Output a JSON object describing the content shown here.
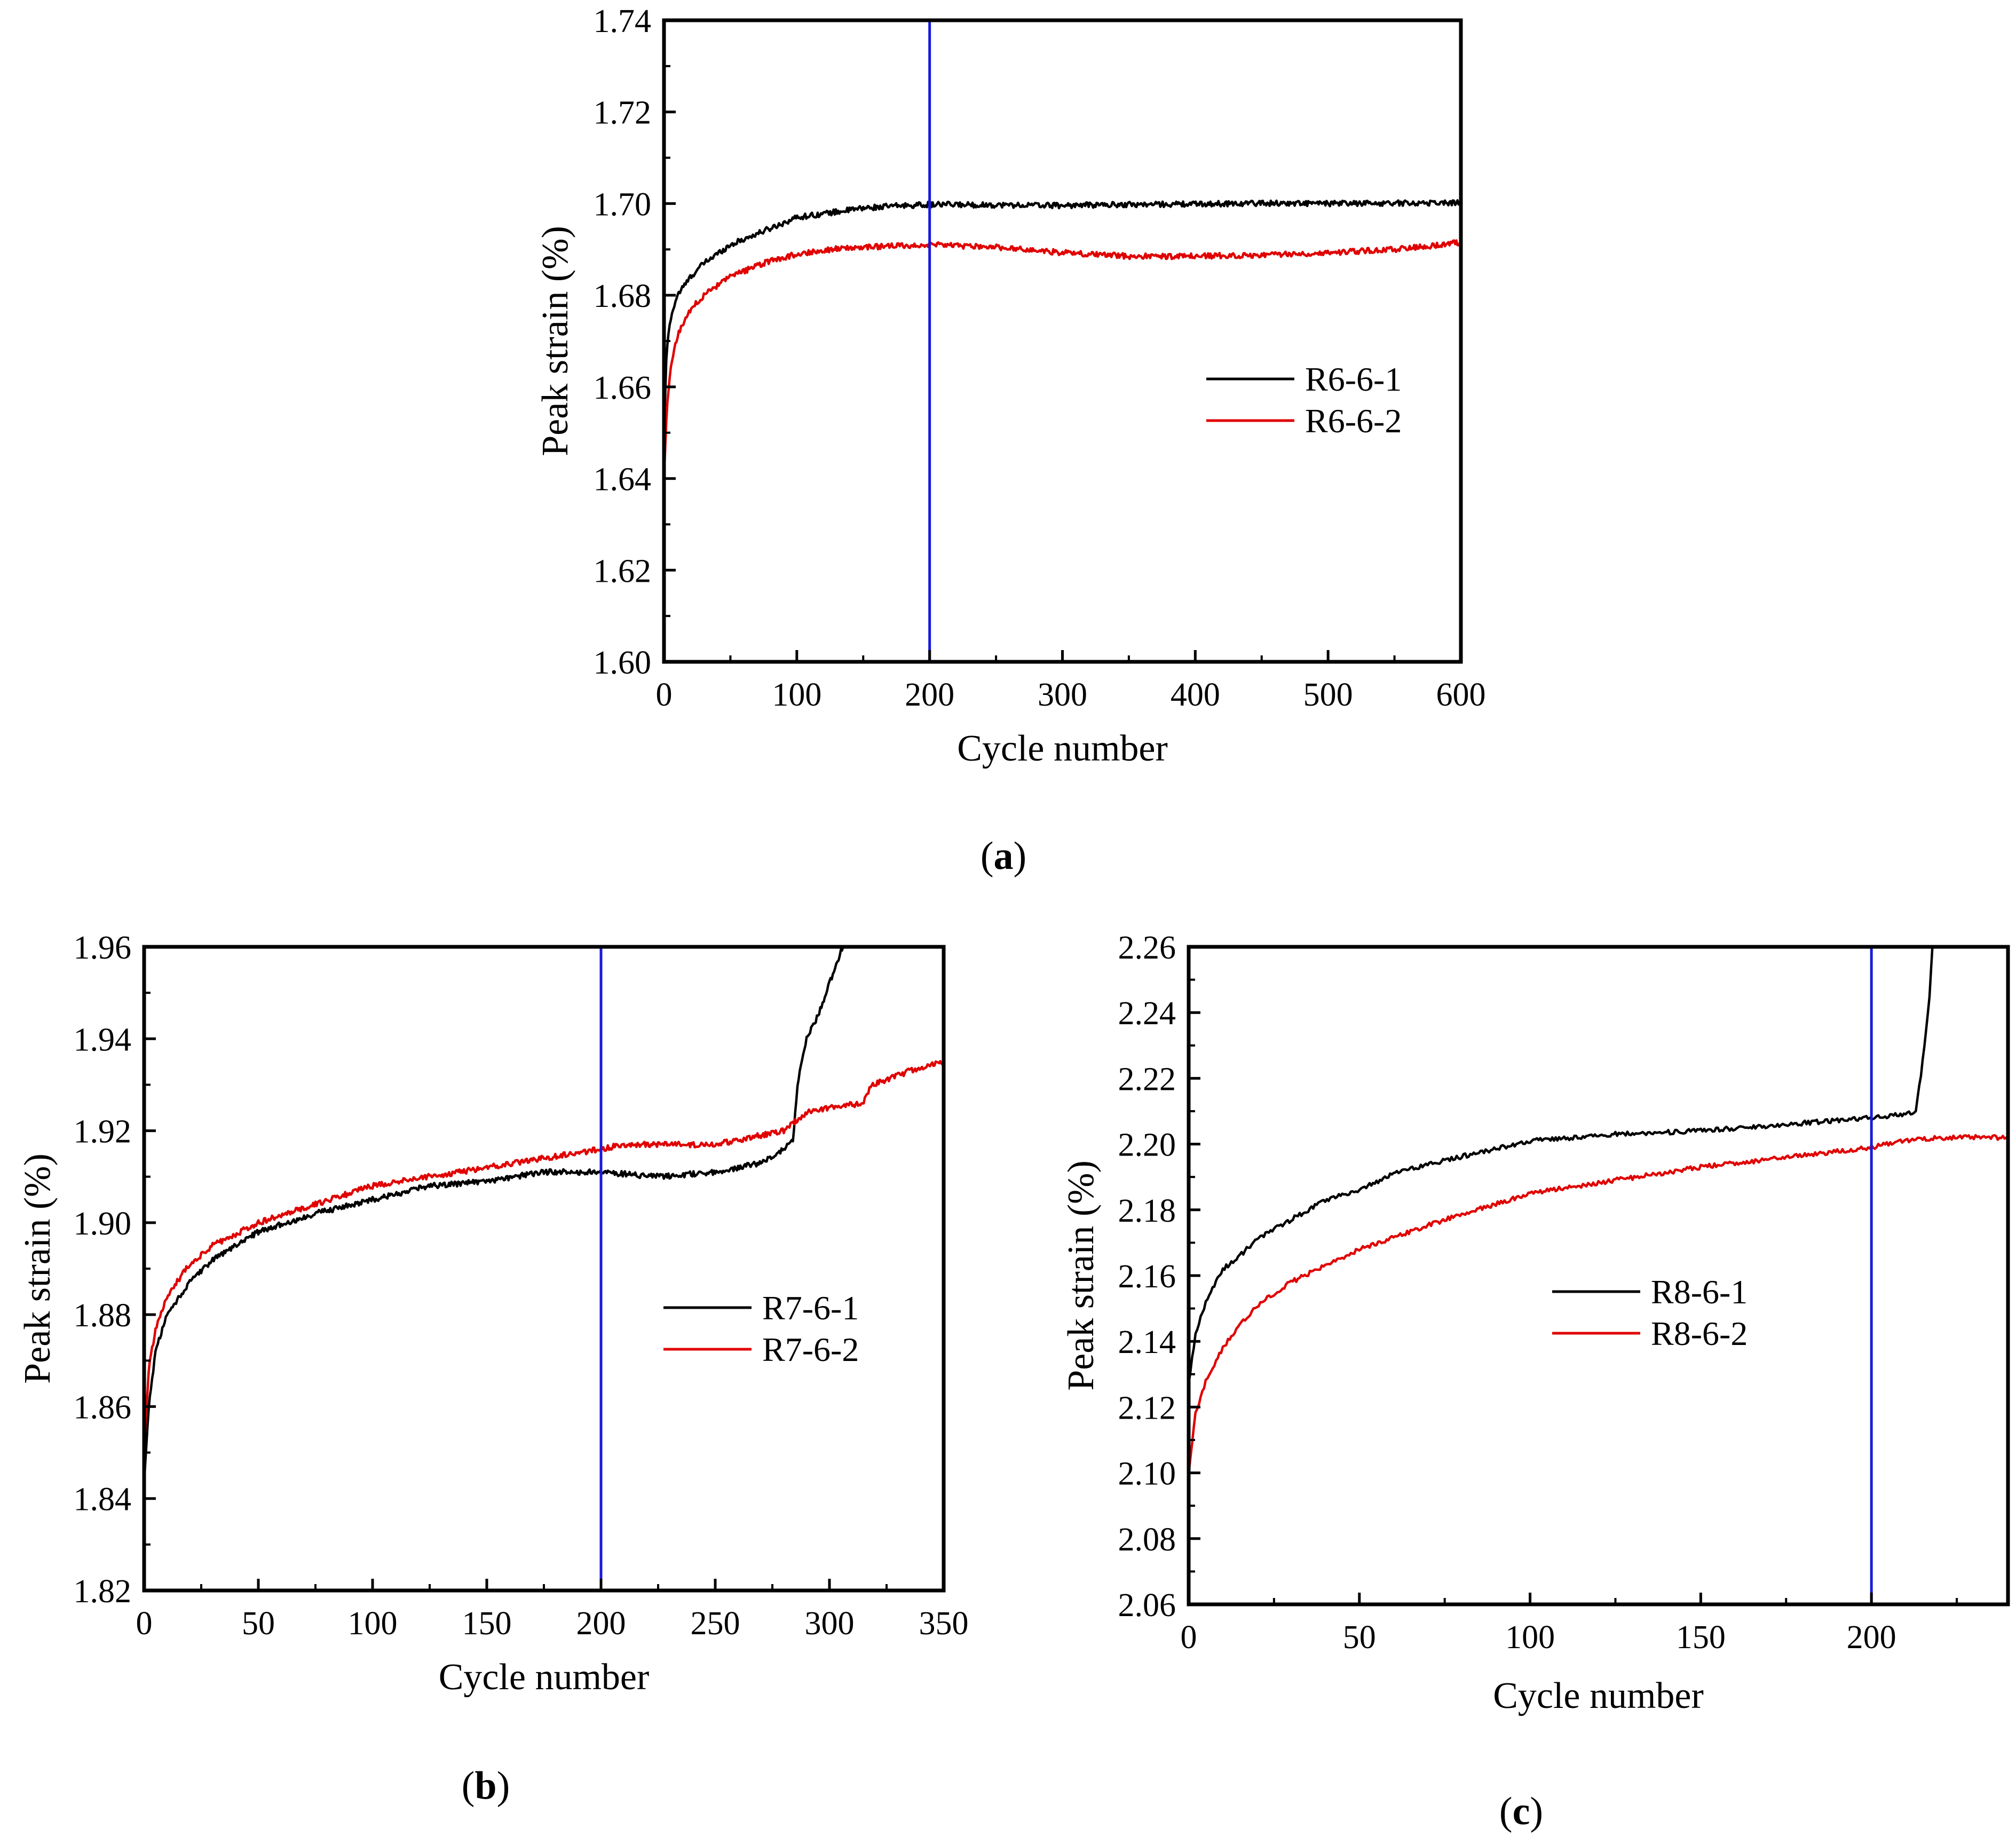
{
  "figure": {
    "captions": [
      "(a)",
      "(b)",
      "(c)"
    ],
    "ref_line_color": "#1a1adc"
  },
  "chart_data": [
    {
      "id": "a",
      "type": "line",
      "caption": "(a)",
      "xlabel": "Cycle number",
      "ylabel": "Peak strain (%)",
      "xlim": [
        0,
        600
      ],
      "ylim": [
        1.6,
        1.74
      ],
      "xticks": [
        "0",
        "100",
        "200",
        "300",
        "400",
        "500",
        "600"
      ],
      "yticks": [
        "1.60",
        "1.62",
        "1.64",
        "1.66",
        "1.68",
        "1.70",
        "1.72",
        "1.74"
      ],
      "grid": false,
      "legend_position": "right",
      "reference_line_x": 200,
      "series": [
        {
          "name": "R6-6-1",
          "color": "#000000",
          "points": [
            [
              0,
              1.65
            ],
            [
              2,
              1.668
            ],
            [
              5,
              1.675
            ],
            [
              10,
              1.68
            ],
            [
              20,
              1.684
            ],
            [
              30,
              1.687
            ],
            [
              50,
              1.691
            ],
            [
              75,
              1.694
            ],
            [
              100,
              1.697
            ],
            [
              125,
              1.698
            ],
            [
              150,
              1.699
            ],
            [
              175,
              1.6995
            ],
            [
              200,
              1.6998
            ],
            [
              250,
              1.6997
            ],
            [
              300,
              1.6996
            ],
            [
              350,
              1.6998
            ],
            [
              400,
              1.6999
            ],
            [
              450,
              1.7001
            ],
            [
              500,
              1.7
            ],
            [
              550,
              1.7001
            ],
            [
              600,
              1.7002
            ]
          ],
          "noise": 0.0006
        },
        {
          "name": "R6-6-2",
          "color": "#e00000",
          "points": [
            [
              0,
              1.64
            ],
            [
              2,
              1.655
            ],
            [
              5,
              1.664
            ],
            [
              10,
              1.671
            ],
            [
              20,
              1.677
            ],
            [
              30,
              1.68
            ],
            [
              50,
              1.684
            ],
            [
              75,
              1.687
            ],
            [
              100,
              1.689
            ],
            [
              125,
              1.69
            ],
            [
              150,
              1.6905
            ],
            [
              200,
              1.691
            ],
            [
              250,
              1.6905
            ],
            [
              300,
              1.6893
            ],
            [
              350,
              1.6885
            ],
            [
              400,
              1.6885
            ],
            [
              450,
              1.6888
            ],
            [
              500,
              1.6893
            ],
            [
              550,
              1.69
            ],
            [
              600,
              1.6915
            ]
          ],
          "noise": 0.0006
        }
      ]
    },
    {
      "id": "b",
      "type": "line",
      "caption": "(b)",
      "xlabel": "Cycle number",
      "ylabel": "Peak strain (%)",
      "xlim": [
        0,
        350
      ],
      "ylim": [
        1.82,
        1.96
      ],
      "xticks": [
        "0",
        "50",
        "100",
        "150",
        "200",
        "250",
        "300",
        "350"
      ],
      "yticks": [
        "1.82",
        "1.84",
        "1.86",
        "1.88",
        "1.90",
        "1.92",
        "1.94",
        "1.96"
      ],
      "grid": false,
      "legend_position": "right",
      "reference_line_x": 200,
      "series": [
        {
          "name": "R7-6-1",
          "color": "#000000",
          "points": [
            [
              0,
              1.843
            ],
            [
              2,
              1.86
            ],
            [
              5,
              1.872
            ],
            [
              10,
              1.88
            ],
            [
              20,
              1.887
            ],
            [
              30,
              1.892
            ],
            [
              50,
              1.898
            ],
            [
              75,
              1.902
            ],
            [
              100,
              1.905
            ],
            [
              125,
              1.908
            ],
            [
              150,
              1.909
            ],
            [
              175,
              1.911
            ],
            [
              200,
              1.911
            ],
            [
              225,
              1.91
            ],
            [
              250,
              1.911
            ],
            [
              270,
              1.913
            ],
            [
              280,
              1.916
            ],
            [
              284,
              1.918
            ],
            [
              286,
              1.93
            ],
            [
              290,
              1.94
            ],
            [
              295,
              1.945
            ],
            [
              300,
              1.952
            ],
            [
              305,
              1.959
            ],
            [
              307,
              1.962
            ]
          ],
          "noise": 0.0006
        },
        {
          "name": "R7-6-2",
          "color": "#e00000",
          "points": [
            [
              0,
              1.851
            ],
            [
              2,
              1.868
            ],
            [
              5,
              1.877
            ],
            [
              10,
              1.884
            ],
            [
              20,
              1.891
            ],
            [
              30,
              1.895
            ],
            [
              50,
              1.9
            ],
            [
              75,
              1.904
            ],
            [
              100,
              1.908
            ],
            [
              125,
              1.91
            ],
            [
              150,
              1.912
            ],
            [
              175,
              1.914
            ],
            [
              200,
              1.916
            ],
            [
              210,
              1.917
            ],
            [
              250,
              1.917
            ],
            [
              270,
              1.919
            ],
            [
              280,
              1.92
            ],
            [
              285,
              1.922
            ],
            [
              290,
              1.924
            ],
            [
              300,
              1.925
            ],
            [
              315,
              1.926
            ],
            [
              318,
              1.93
            ],
            [
              325,
              1.931
            ],
            [
              335,
              1.933
            ],
            [
              350,
              1.935
            ]
          ],
          "noise": 0.0006
        }
      ]
    },
    {
      "id": "c",
      "type": "line",
      "caption": "(c)",
      "xlabel": "Cycle number",
      "ylabel": "Peak strain (%)",
      "xlim": [
        0,
        240
      ],
      "ylim": [
        2.06,
        2.26
      ],
      "xticks": [
        "0",
        "50",
        "100",
        "150",
        "200"
      ],
      "yticks": [
        "2.06",
        "2.08",
        "2.10",
        "2.12",
        "2.14",
        "2.16",
        "2.18",
        "2.20",
        "2.22",
        "2.24",
        "2.26"
      ],
      "grid": false,
      "legend_position": "center-right",
      "reference_line_x": 200,
      "series": [
        {
          "name": "R8-6-1",
          "color": "#000000",
          "points": [
            [
              0,
              2.127
            ],
            [
              2,
              2.142
            ],
            [
              5,
              2.152
            ],
            [
              10,
              2.162
            ],
            [
              15,
              2.166
            ],
            [
              20,
              2.171
            ],
            [
              30,
              2.177
            ],
            [
              40,
              2.183
            ],
            [
              50,
              2.186
            ],
            [
              60,
              2.191
            ],
            [
              75,
              2.195
            ],
            [
              100,
              2.201
            ],
            [
              125,
              2.203
            ],
            [
              150,
              2.204
            ],
            [
              175,
              2.206
            ],
            [
              200,
              2.208
            ],
            [
              210,
              2.209
            ],
            [
              213,
              2.21
            ],
            [
              215,
              2.225
            ],
            [
              217,
              2.245
            ],
            [
              218,
              2.262
            ]
          ],
          "noise": 0.0007
        },
        {
          "name": "R8-6-2",
          "color": "#e00000",
          "points": [
            [
              0,
              2.1
            ],
            [
              2,
              2.118
            ],
            [
              5,
              2.128
            ],
            [
              10,
              2.138
            ],
            [
              15,
              2.145
            ],
            [
              20,
              2.151
            ],
            [
              30,
              2.158
            ],
            [
              40,
              2.163
            ],
            [
              50,
              2.168
            ],
            [
              75,
              2.177
            ],
            [
              100,
              2.185
            ],
            [
              125,
              2.189
            ],
            [
              150,
              2.193
            ],
            [
              175,
              2.196
            ],
            [
              200,
              2.199
            ],
            [
              210,
              2.201
            ],
            [
              220,
              2.202
            ],
            [
              240,
              2.202
            ]
          ],
          "noise": 0.0007
        }
      ]
    }
  ]
}
